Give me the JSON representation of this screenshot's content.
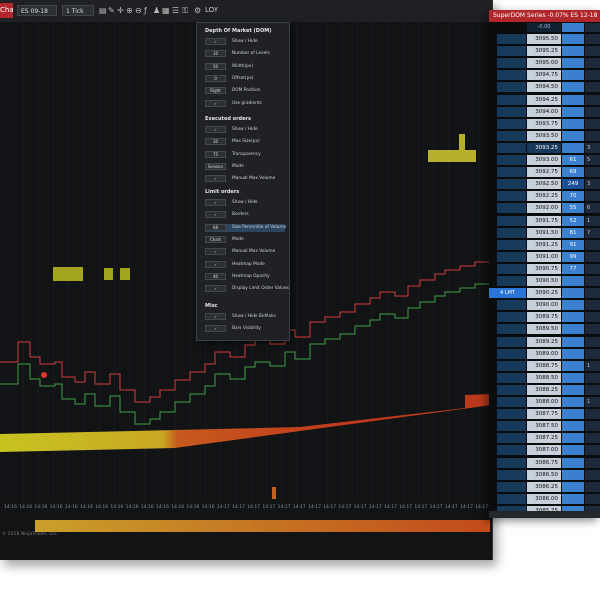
{
  "chart_window": {
    "tab_label": "Chart",
    "instrument": "ES 09-18",
    "interval": "1 Tick",
    "toolbar_icons": [
      "bars-icon",
      "draw-icon",
      "crosshair-icon",
      "zoom-in-icon",
      "zoom-out-icon",
      "indicators-icon",
      "strategies-icon",
      "templates-icon",
      "properties-icon",
      "lock-icon",
      "gear-icon"
    ],
    "loy_label": "LOY",
    "copyright": "© 2018 NinjaTrader, LLC",
    "time_labels": [
      "14:16",
      "14:16",
      "14:16",
      "14:16",
      "14:16",
      "14:16",
      "14:16",
      "14:16",
      "14:16",
      "14:16",
      "14:16",
      "14:16",
      "14:16",
      "14:16",
      "14:17",
      "14:17",
      "14:17",
      "14:17",
      "14:17",
      "14:17",
      "14:17",
      "14:17",
      "14:17",
      "14:17",
      "14:17",
      "14:17",
      "14:17",
      "14:17",
      "14:17",
      "14:17",
      "14:17",
      "14:17"
    ]
  },
  "properties": {
    "sections": {
      "dom": "Depth Of Market (DOM)",
      "executed": "Executed orders",
      "limit": "Limit orders",
      "misc": "Misc"
    },
    "dom_rows": [
      {
        "value": "✓",
        "label": "Show / Hide"
      },
      {
        "value": "10",
        "label": "Number of Levels"
      },
      {
        "value": "50",
        "label": "Width(px)"
      },
      {
        "value": "0",
        "label": "Offset(px)"
      },
      {
        "value": "Right",
        "label": "DOM Position"
      },
      {
        "value": "✓",
        "label": "Use gradients"
      }
    ],
    "executed_rows": [
      {
        "value": "✓",
        "label": "Show / Hide"
      },
      {
        "value": "30",
        "label": "Max Size(px)"
      },
      {
        "value": "75",
        "label": "Transparency"
      },
      {
        "value": "Session",
        "label": "Mode"
      },
      {
        "value": "✓",
        "label": "Manual Max Volume"
      }
    ],
    "limit_rows": [
      {
        "value": "✓",
        "label": "Show / Hide"
      },
      {
        "value": "✓",
        "label": "Borders"
      },
      {
        "value": "68",
        "label": "Size Percentile of Volume"
      },
      {
        "value": "Chart",
        "label": "Mode"
      },
      {
        "value": "✓",
        "label": "Manual Max Volume"
      },
      {
        "value": "✓",
        "label": "Heatmap Mode"
      },
      {
        "value": "40",
        "label": "Heatmap Opacity"
      },
      {
        "value": "✓",
        "label": "Display Limit Order Values"
      }
    ],
    "misc_rows": [
      {
        "value": "✓",
        "label": "Show / Hide BidAsks"
      },
      {
        "value": "✓",
        "label": "Bars Visibility"
      }
    ]
  },
  "superdom": {
    "title": "SuperDOM Series -0.07% ES 12-18",
    "pnl": "-0.00",
    "order_label": "4 LMT",
    "rows": [
      {
        "price": "3095.50",
        "bid": "",
        "ask": ""
      },
      {
        "price": "3095.25",
        "bid": "",
        "ask": ""
      },
      {
        "price": "3095.00",
        "bid": "",
        "ask": ""
      },
      {
        "price": "3094.75",
        "bid": "",
        "ask": ""
      },
      {
        "price": "3094.50",
        "bid": "",
        "ask": ""
      },
      {
        "price": "3094.25",
        "bid": "",
        "ask": ""
      },
      {
        "price": "3094.00",
        "bid": "",
        "ask": ""
      },
      {
        "price": "3093.75",
        "bid": "",
        "ask": ""
      },
      {
        "price": "3093.50",
        "bid": "",
        "ask": ""
      },
      {
        "price": "3093.25",
        "bid": "",
        "ask": "3"
      },
      {
        "price": "3093.00",
        "bid": "61",
        "ask": "5"
      },
      {
        "price": "3092.75",
        "bid": "69",
        "ask": ""
      },
      {
        "price": "3092.50",
        "bid": "249",
        "ask": "3"
      },
      {
        "price": "3092.25",
        "bid": "70",
        "ask": ""
      },
      {
        "price": "3092.00",
        "bid": "55",
        "ask": "6"
      },
      {
        "price": "3091.75",
        "bid": "52",
        "ask": "1"
      },
      {
        "price": "3091.50",
        "bid": "81",
        "ask": "7"
      },
      {
        "price": "3091.25",
        "bid": "91",
        "ask": ""
      },
      {
        "price": "3091.00",
        "bid": "99",
        "ask": ""
      },
      {
        "price": "3090.75",
        "bid": "77",
        "ask": ""
      },
      {
        "price": "3090.50",
        "bid": "",
        "ask": ""
      },
      {
        "price": "3090.25",
        "bid": "",
        "ask": ""
      },
      {
        "price": "3090.00",
        "bid": "",
        "ask": ""
      },
      {
        "price": "3089.75",
        "bid": "",
        "ask": ""
      },
      {
        "price": "3089.50",
        "bid": "",
        "ask": ""
      },
      {
        "price": "3089.25",
        "bid": "",
        "ask": ""
      },
      {
        "price": "3089.00",
        "bid": "",
        "ask": ""
      },
      {
        "price": "3088.75",
        "bid": "",
        "ask": "1"
      },
      {
        "price": "3088.50",
        "bid": "",
        "ask": ""
      },
      {
        "price": "3088.25",
        "bid": "",
        "ask": ""
      },
      {
        "price": "3088.00",
        "bid": "",
        "ask": "1"
      },
      {
        "price": "3087.75",
        "bid": "",
        "ask": ""
      },
      {
        "price": "3087.50",
        "bid": "",
        "ask": ""
      },
      {
        "price": "3087.25",
        "bid": "",
        "ask": ""
      },
      {
        "price": "3087.00",
        "bid": "",
        "ask": ""
      },
      {
        "price": "3086.75",
        "bid": "",
        "ask": ""
      },
      {
        "price": "3086.50",
        "bid": "",
        "ask": ""
      },
      {
        "price": "3086.25",
        "bid": "",
        "ask": ""
      },
      {
        "price": "3086.00",
        "bid": "",
        "ask": ""
      },
      {
        "price": "3085.75",
        "bid": "",
        "ask": ""
      }
    ]
  },
  "colors": {
    "accent_red": "#b1262b",
    "bid_blue": "#3b7fcf",
    "heat_yellow": "#c8c321",
    "heat_red": "#c0391b",
    "line_red": "#d23b3b",
    "line_green": "#3fa045"
  }
}
